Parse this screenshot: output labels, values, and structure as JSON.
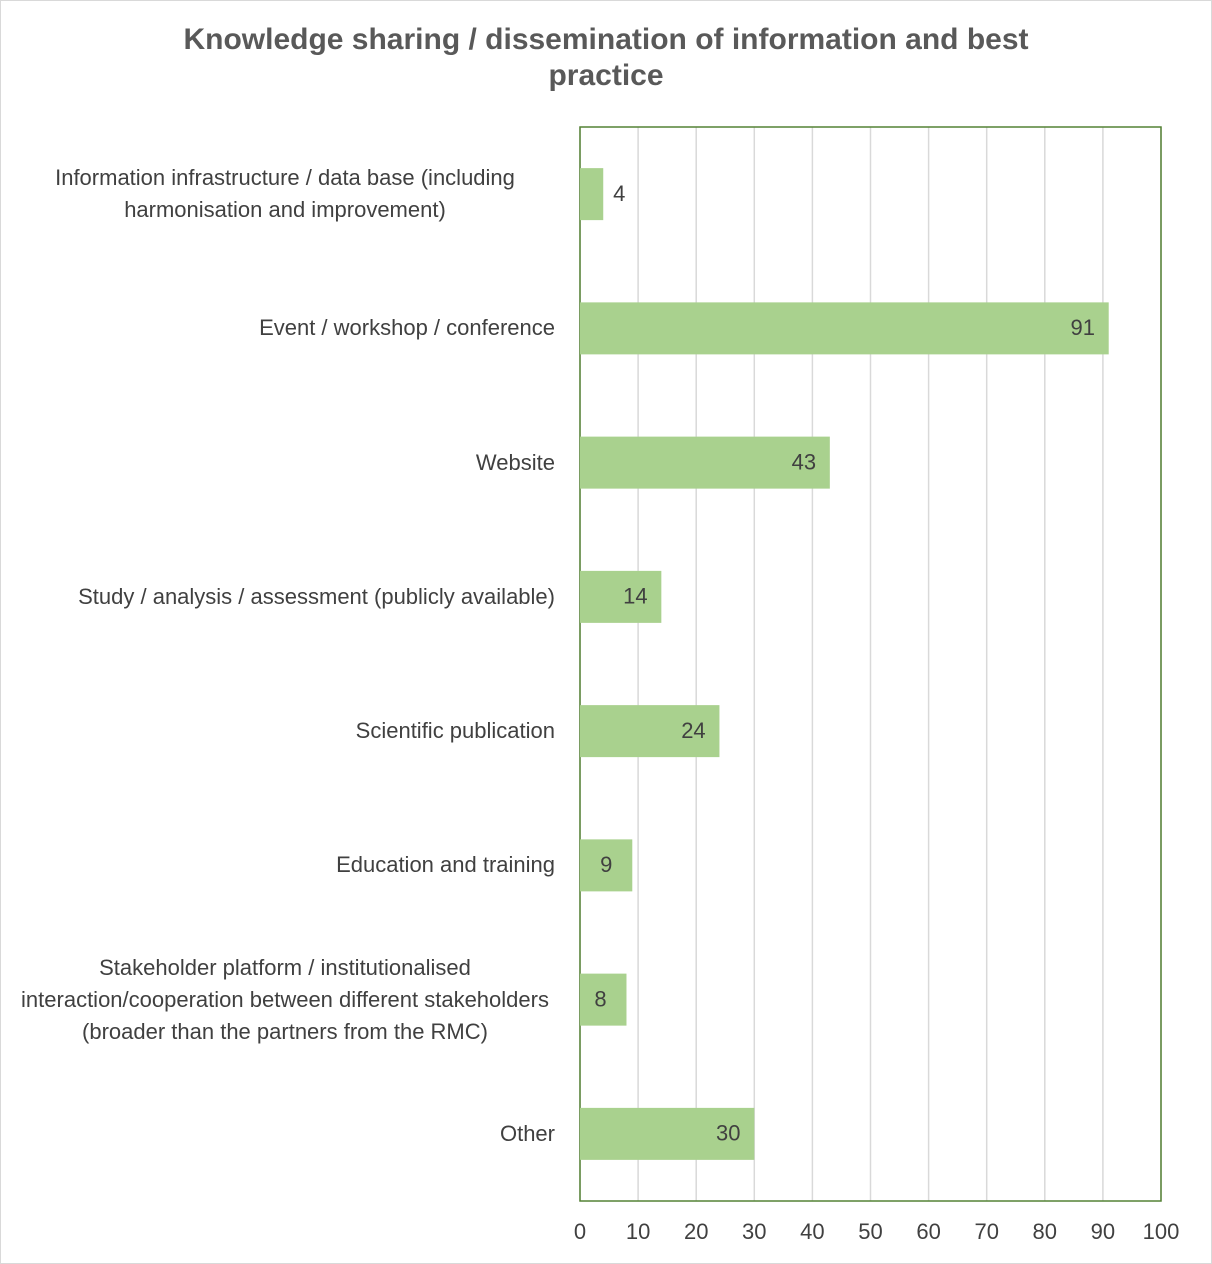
{
  "chart_data": {
    "type": "bar",
    "orientation": "horizontal",
    "title": "Knowledge sharing / dissemination of information and best practice",
    "categories": [
      "Information infrastructure / data base (including harmonisation and improvement)",
      "Event / workshop / conference",
      "Website",
      "Study / analysis / assessment (publicly available)",
      "Scientific publication",
      "Education and training",
      "Stakeholder platform / institutionalised interaction/cooperation between different stakeholders (broader than the partners from the RMC)",
      "Other"
    ],
    "values": [
      4,
      91,
      43,
      14,
      24,
      9,
      8,
      30
    ],
    "color": "#a9d18e",
    "xlim": [
      0,
      100
    ],
    "xticks": [
      0,
      10,
      20,
      30,
      40,
      50,
      60,
      70,
      80,
      90,
      100
    ],
    "grid": true
  }
}
